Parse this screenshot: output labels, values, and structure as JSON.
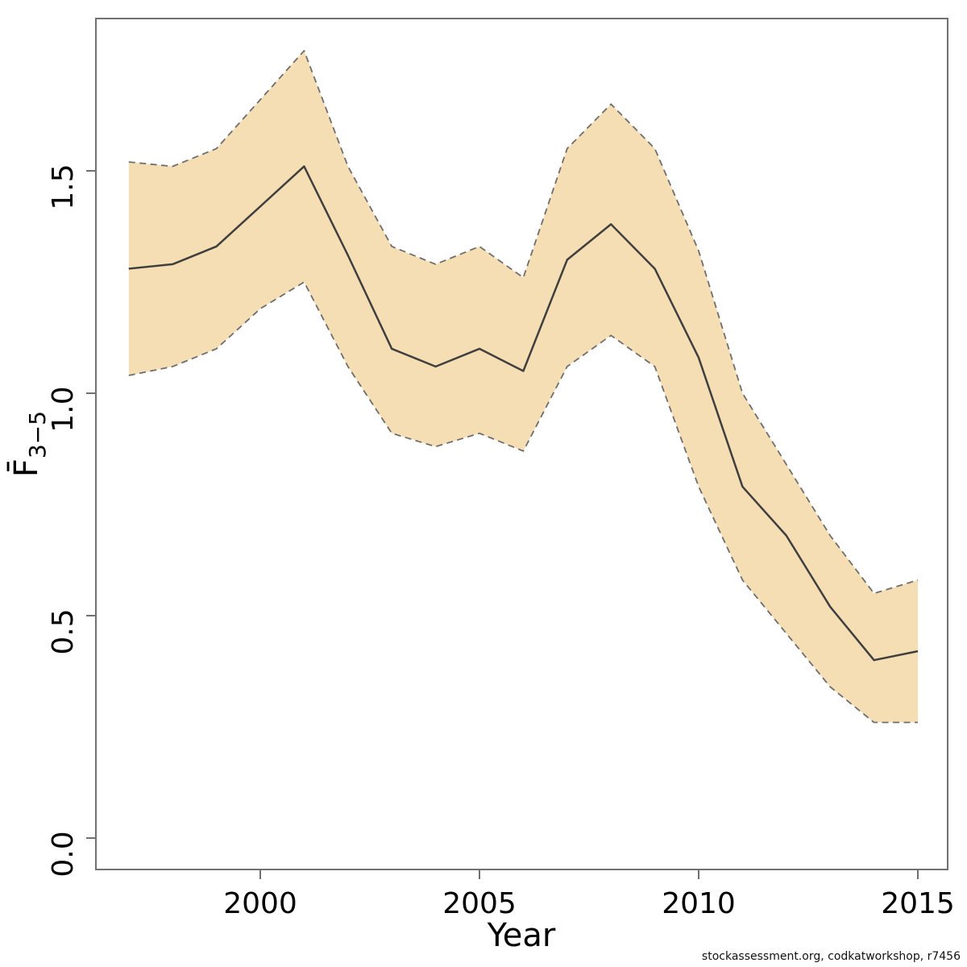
{
  "footer": {
    "credit": "stockassessment.org, codkatworkshop, r7456"
  },
  "colors": {
    "band_fill": "#f5deb3",
    "band_border": "#6e6e6e",
    "estimate_line": "#3f3f3f",
    "axis_box": "#717171",
    "tick_label": "#000000"
  },
  "chart_data": {
    "type": "line",
    "title": "",
    "xlabel": "Year",
    "ylabel": {
      "base": "F̄",
      "subscript": "3−5"
    },
    "x": [
      1997,
      1998,
      1999,
      2000,
      2001,
      2002,
      2003,
      2004,
      2005,
      2006,
      2007,
      2008,
      2009,
      2010,
      2011,
      2012,
      2013,
      2014,
      2015
    ],
    "series": [
      {
        "name": "estimate",
        "values": [
          1.28,
          1.29,
          1.33,
          1.42,
          1.51,
          1.31,
          1.1,
          1.06,
          1.1,
          1.05,
          1.3,
          1.38,
          1.28,
          1.08,
          0.79,
          0.68,
          0.52,
          0.4,
          0.42
        ]
      },
      {
        "name": "ci_lower",
        "values": [
          1.04,
          1.06,
          1.1,
          1.19,
          1.25,
          1.06,
          0.91,
          0.88,
          0.91,
          0.87,
          1.06,
          1.13,
          1.06,
          0.79,
          0.58,
          0.46,
          0.34,
          0.26,
          0.26
        ]
      },
      {
        "name": "ci_upper",
        "values": [
          1.52,
          1.51,
          1.55,
          1.66,
          1.77,
          1.51,
          1.33,
          1.29,
          1.33,
          1.26,
          1.55,
          1.65,
          1.55,
          1.32,
          1.0,
          0.84,
          0.68,
          0.55,
          0.58
        ]
      }
    ],
    "x_ticks": {
      "values": [
        2000,
        2005,
        2010,
        2015
      ],
      "labels": [
        "2000",
        "2005",
        "2010",
        "2015"
      ]
    },
    "y_ticks": {
      "values": [
        0.0,
        0.5,
        1.0,
        1.5
      ],
      "labels": [
        "0.0",
        "0.5",
        "1.0",
        "1.5"
      ]
    },
    "xlim": [
      1996.25,
      2015.68
    ],
    "ylim": [
      0,
      1.84
    ],
    "grid": false,
    "legend": "none",
    "band_style": "dashed-border-filled-polygon"
  }
}
